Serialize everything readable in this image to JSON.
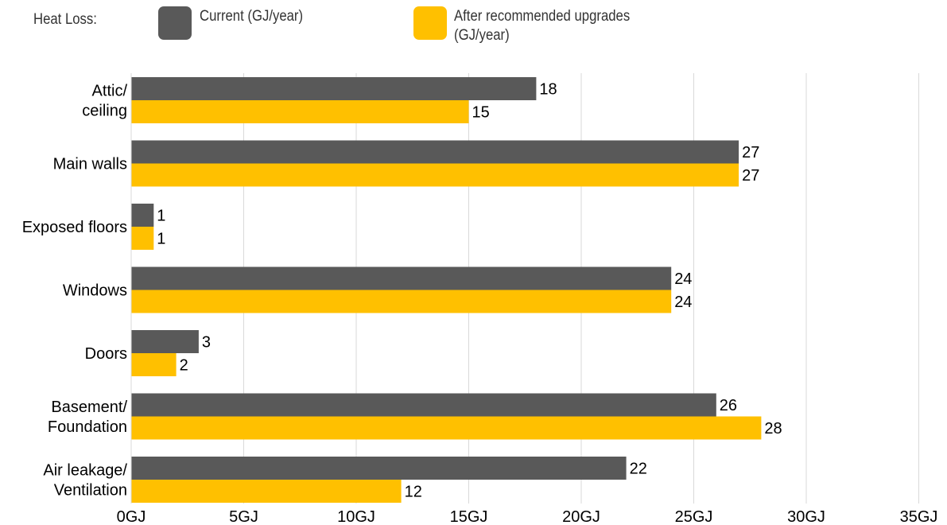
{
  "legend": {
    "title": "Heat Loss:",
    "current_label": "Current (GJ/year)",
    "after_label_line1": "After recommended upgrades",
    "after_label_line2": "(GJ/year)"
  },
  "colors": {
    "current": "#595959",
    "after": "#ffc000",
    "grid": "#d9d9d9"
  },
  "chart_data": {
    "type": "bar",
    "orientation": "horizontal",
    "categories": [
      [
        "Attic/",
        "ceiling"
      ],
      [
        "Main walls"
      ],
      [
        "Exposed floors"
      ],
      [
        "Windows"
      ],
      [
        "Doors"
      ],
      [
        "Basement/",
        "Foundation"
      ],
      [
        "Air leakage/",
        "Ventilation"
      ]
    ],
    "series": [
      {
        "name": "Current (GJ/year)",
        "values": [
          18,
          27,
          1,
          24,
          3,
          26,
          22
        ]
      },
      {
        "name": "After recommended upgrades (GJ/year)",
        "values": [
          15,
          27,
          1,
          24,
          2,
          28,
          12
        ]
      }
    ],
    "xlim": [
      0,
      35
    ],
    "xticks": [
      0,
      5,
      10,
      15,
      20,
      25,
      30,
      35
    ],
    "tick_suffix": "GJ",
    "grid": true,
    "legend_position": "top"
  }
}
